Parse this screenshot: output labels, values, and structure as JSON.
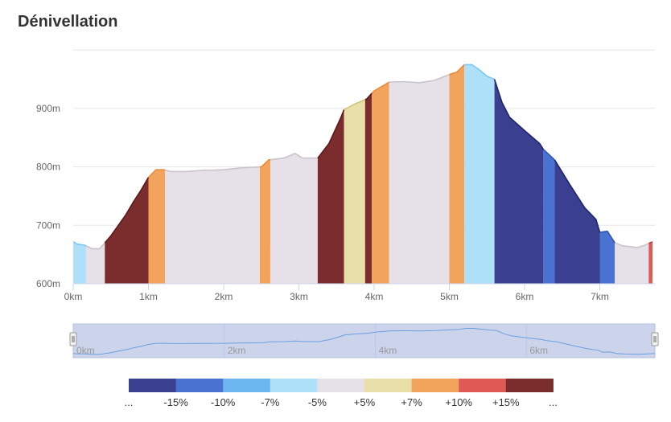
{
  "title": "Dénivellation",
  "chart_data": {
    "type": "area",
    "title": "Dénivellation",
    "xlabel": "",
    "ylabel": "",
    "x_unit": "km",
    "y_unit": "m",
    "xlim": [
      0,
      7.7
    ],
    "ylim": [
      600,
      1000
    ],
    "x_ticks": [
      "0km",
      "1km",
      "2km",
      "3km",
      "4km",
      "5km",
      "6km",
      "7km"
    ],
    "y_ticks": [
      "600m",
      "700m",
      "800m",
      "900m"
    ],
    "navigator_ticks": [
      "0km",
      "2km",
      "4km",
      "6km"
    ],
    "grid": true,
    "profile": [
      [
        0,
        672
      ],
      [
        0.05,
        668
      ],
      [
        0.15,
        666
      ],
      [
        0.25,
        660
      ],
      [
        0.35,
        660
      ],
      [
        0.42,
        670
      ],
      [
        0.5,
        682
      ],
      [
        0.6,
        700
      ],
      [
        0.7,
        718
      ],
      [
        0.8,
        740
      ],
      [
        0.9,
        760
      ],
      [
        1.0,
        782
      ],
      [
        1.1,
        795
      ],
      [
        1.2,
        795
      ],
      [
        1.3,
        792
      ],
      [
        1.5,
        792
      ],
      [
        1.7,
        794
      ],
      [
        2.0,
        795
      ],
      [
        2.2,
        798
      ],
      [
        2.5,
        800
      ],
      [
        2.6,
        812
      ],
      [
        2.8,
        815
      ],
      [
        2.95,
        823
      ],
      [
        3.05,
        815
      ],
      [
        3.25,
        815
      ],
      [
        3.4,
        840
      ],
      [
        3.55,
        882
      ],
      [
        3.6,
        898
      ],
      [
        3.75,
        908
      ],
      [
        3.9,
        916
      ],
      [
        4.0,
        930
      ],
      [
        4.2,
        945
      ],
      [
        4.4,
        946
      ],
      [
        4.6,
        944
      ],
      [
        4.8,
        948
      ],
      [
        5.0,
        958
      ],
      [
        5.1,
        962
      ],
      [
        5.2,
        975
      ],
      [
        5.3,
        975
      ],
      [
        5.4,
        966
      ],
      [
        5.5,
        955
      ],
      [
        5.6,
        950
      ],
      [
        5.7,
        910
      ],
      [
        5.8,
        885
      ],
      [
        6.0,
        862
      ],
      [
        6.2,
        840
      ],
      [
        6.25,
        830
      ],
      [
        6.4,
        812
      ],
      [
        6.6,
        770
      ],
      [
        6.8,
        730
      ],
      [
        6.95,
        710
      ],
      [
        7.0,
        688
      ],
      [
        7.1,
        690
      ],
      [
        7.2,
        670
      ],
      [
        7.3,
        665
      ],
      [
        7.5,
        662
      ],
      [
        7.6,
        666
      ],
      [
        7.7,
        672
      ]
    ],
    "segments": [
      {
        "from": 0,
        "to": 0.17,
        "color": "#aee0fa",
        "line": "#7cc8f5"
      },
      {
        "from": 0.17,
        "to": 0.42,
        "color": "#e6e0e8",
        "line": "#c9c3cc"
      },
      {
        "from": 0.42,
        "to": 1.0,
        "color": "#7b2d2d",
        "line": "#5e1a1a"
      },
      {
        "from": 1.0,
        "to": 1.22,
        "color": "#f3a45c",
        "line": "#e88b3a"
      },
      {
        "from": 1.22,
        "to": 2.48,
        "color": "#e6e0e8",
        "line": "#c9c3cc"
      },
      {
        "from": 2.48,
        "to": 2.62,
        "color": "#f3a45c",
        "line": "#e88b3a"
      },
      {
        "from": 2.62,
        "to": 3.25,
        "color": "#e6e0e8",
        "line": "#c9c3cc"
      },
      {
        "from": 3.25,
        "to": 3.6,
        "color": "#7b2d2d",
        "line": "#5e1a1a"
      },
      {
        "from": 3.6,
        "to": 3.88,
        "color": "#e8e0a8",
        "line": "#cfc57a"
      },
      {
        "from": 3.88,
        "to": 3.97,
        "color": "#7b2d2d",
        "line": "#5e1a1a"
      },
      {
        "from": 3.97,
        "to": 4.2,
        "color": "#f3a45c",
        "line": "#e88b3a"
      },
      {
        "from": 4.2,
        "to": 5.0,
        "color": "#e6e0e8",
        "line": "#c9c3cc"
      },
      {
        "from": 5.0,
        "to": 5.2,
        "color": "#f3a45c",
        "line": "#e88b3a"
      },
      {
        "from": 5.2,
        "to": 5.6,
        "color": "#aee0fa",
        "line": "#7cc8f5"
      },
      {
        "from": 5.6,
        "to": 6.25,
        "color": "#3a3f8f",
        "line": "#1f2470"
      },
      {
        "from": 6.25,
        "to": 6.4,
        "color": "#4a73d1",
        "line": "#2f55b8"
      },
      {
        "from": 6.4,
        "to": 7.0,
        "color": "#3a3f8f",
        "line": "#1f2470"
      },
      {
        "from": 7.0,
        "to": 7.2,
        "color": "#4a73d1",
        "line": "#2f55b8"
      },
      {
        "from": 7.2,
        "to": 7.65,
        "color": "#e6e0e8",
        "line": "#c9c3cc"
      },
      {
        "from": 7.65,
        "to": 7.7,
        "color": "#e05a55",
        "line": "#c43e3a"
      }
    ]
  },
  "legend": {
    "colors": [
      "#3a3f8f",
      "#4a73d1",
      "#6cb6ef",
      "#aee0fa",
      "#e6e0e8",
      "#e8e0a8",
      "#f3a45c",
      "#e05a55",
      "#7b2d2d"
    ],
    "labels": [
      "...",
      "-15%",
      "-10%",
      "-7%",
      "-5%",
      "+5%",
      "+7%",
      "+10%",
      "+15%",
      "..."
    ]
  },
  "colors": {
    "navigator_fill": "#ccd4ec",
    "navigator_line": "#6b9fe0",
    "grid": "#e6e6e6"
  }
}
